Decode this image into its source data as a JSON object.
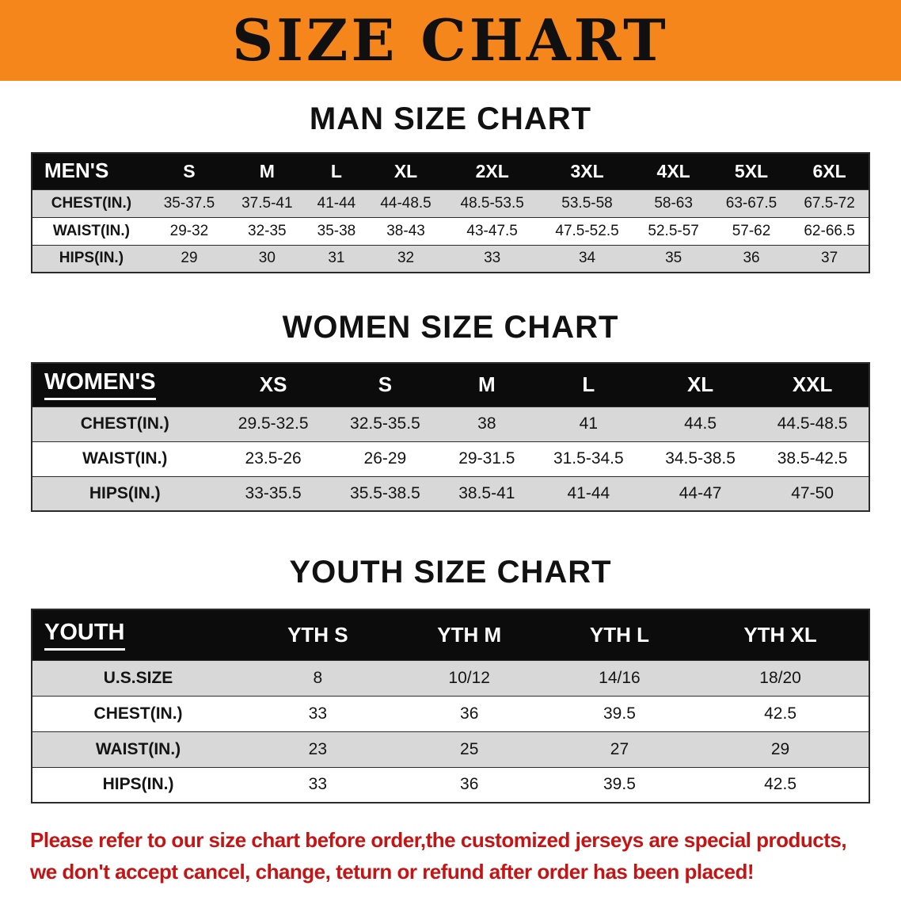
{
  "banner": {
    "title": "SIZE CHART"
  },
  "sections": [
    {
      "id": "men",
      "heading": "MAN SIZE CHART",
      "table": {
        "header": [
          "MEN'S",
          "S",
          "M",
          "L",
          "XL",
          "2XL",
          "3XL",
          "4XL",
          "5XL",
          "6XL"
        ],
        "rows": [
          {
            "label": "CHEST(IN.)",
            "values": [
              "35-37.5",
              "37.5-41",
              "41-44",
              "44-48.5",
              "48.5-53.5",
              "53.5-58",
              "58-63",
              "63-67.5",
              "67.5-72"
            ]
          },
          {
            "label": "WAIST(IN.)",
            "values": [
              "29-32",
              "32-35",
              "35-38",
              "38-43",
              "43-47.5",
              "47.5-52.5",
              "52.5-57",
              "57-62",
              "62-66.5"
            ]
          },
          {
            "label": "HIPS(IN.)",
            "values": [
              "29",
              "30",
              "31",
              "32",
              "33",
              "34",
              "35",
              "36",
              "37"
            ]
          }
        ]
      }
    },
    {
      "id": "women",
      "heading": "WOMEN SIZE CHART",
      "table": {
        "header": [
          "WOMEN'S",
          "XS",
          "S",
          "M",
          "L",
          "XL",
          "XXL"
        ],
        "rows": [
          {
            "label": "CHEST(IN.)",
            "values": [
              "29.5-32.5",
              "32.5-35.5",
              "38",
              "41",
              "44.5",
              "44.5-48.5"
            ]
          },
          {
            "label": "WAIST(IN.)",
            "values": [
              "23.5-26",
              "26-29",
              "29-31.5",
              "31.5-34.5",
              "34.5-38.5",
              "38.5-42.5"
            ]
          },
          {
            "label": "HIPS(IN.)",
            "values": [
              "33-35.5",
              "35.5-38.5",
              "38.5-41",
              "41-44",
              "44-47",
              "47-50"
            ]
          }
        ]
      }
    },
    {
      "id": "youth",
      "heading": "YOUTH SIZE CHART",
      "table": {
        "header": [
          "YOUTH",
          "YTH S",
          "YTH M",
          "YTH L",
          "YTH XL"
        ],
        "rows": [
          {
            "label": "U.S.SIZE",
            "values": [
              "8",
              "10/12",
              "14/16",
              "18/20"
            ]
          },
          {
            "label": "CHEST(IN.)",
            "values": [
              "33",
              "36",
              "39.5",
              "42.5"
            ]
          },
          {
            "label": "WAIST(IN.)",
            "values": [
              "23",
              "25",
              "27",
              "29"
            ]
          },
          {
            "label": "HIPS(IN.)",
            "values": [
              "33",
              "36",
              "39.5",
              "42.5"
            ]
          }
        ]
      }
    }
  ],
  "disclaimer": {
    "line1": "Please refer to our size chart before order,the customized jerseys are special products,",
    "line2": "we don't accept cancel, change, teturn or refund after order has been placed!"
  },
  "colors": {
    "banner_bg": "#f5861c",
    "title_color": "#101010",
    "header_bg": "#0c0c0c",
    "stripe_bg": "#d8d8d8",
    "border": "#2b2b2b",
    "disclaimer_red": "#c41414"
  }
}
